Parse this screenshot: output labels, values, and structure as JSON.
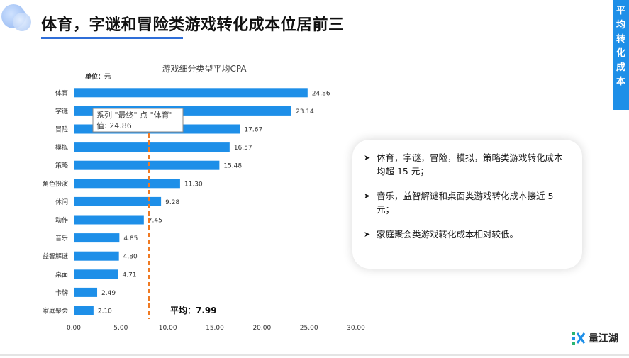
{
  "page": {
    "title": "体育，字谜和冒险类游戏转化成本位居前三",
    "ribbon": [
      "平",
      "均",
      "转",
      "化",
      "成",
      "本"
    ]
  },
  "chart_data": {
    "type": "bar",
    "orientation": "horizontal",
    "title": "游戏细分类型平均CPA",
    "unit_label": "单位：元",
    "categories": [
      "体育",
      "字谜",
      "冒险",
      "模拟",
      "策略",
      "角色扮演",
      "休闲",
      "动作",
      "音乐",
      "益智解谜",
      "桌面",
      "卡牌",
      "家庭聚会"
    ],
    "series": [
      {
        "values": [
          24.86,
          23.14,
          17.67,
          16.57,
          15.48,
          11.3,
          9.28,
          7.45,
          4.85,
          4.8,
          4.71,
          2.49,
          2.1
        ]
      }
    ],
    "value_labels": [
      "24.86",
      "23.14",
      "17.67",
      "16.57",
      "15.48",
      "11.30",
      "9.28",
      "7.45",
      "4.85",
      "4.80",
      "4.71",
      "2.49",
      "2.10"
    ],
    "xlim": [
      0,
      30
    ],
    "x_ticks": [
      "0.00",
      "5.00",
      "10.00",
      "15.00",
      "20.00",
      "25.00",
      "30.00"
    ],
    "bar_color": "#1e8fe8",
    "average": {
      "value": 7.99,
      "label": "平均：7.99",
      "color": "#f07a22"
    },
    "tooltip": {
      "line1": "系列 \"最终\" 点 \"体育\"",
      "line2": "值: 24.86"
    },
    "grid": false
  },
  "callout": {
    "items": [
      "体育，字谜，冒险，模拟，策略类游戏转化成本均超 15 元；",
      "音乐，益智解谜和桌面类游戏转化成本接近 5 元；",
      "家庭聚会类游戏转化成本相对较低。"
    ]
  },
  "brand": {
    "name": "量江湖"
  }
}
